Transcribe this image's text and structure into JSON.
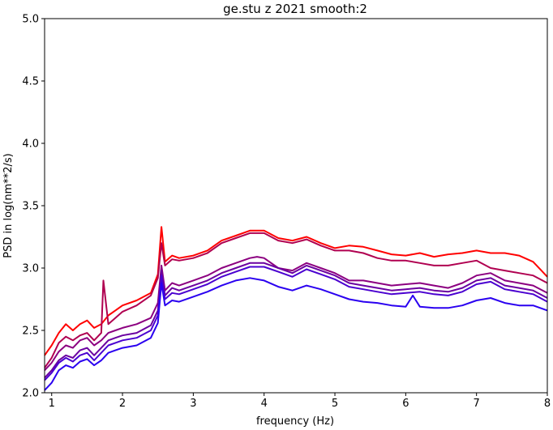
{
  "chart_data": {
    "type": "line",
    "title": "ge.stu z 2021 smooth:2",
    "xlabel": "frequency (Hz)",
    "ylabel": "PSD in log(nm**2/s)",
    "xlim": [
      0.9,
      8.0
    ],
    "ylim": [
      2.0,
      5.0
    ],
    "xticks": [
      "1",
      "2",
      "3",
      "4",
      "5",
      "6",
      "7",
      "8"
    ],
    "yticks": [
      "2.0",
      "2.5",
      "3.0",
      "3.5",
      "4.0",
      "4.5",
      "5.0"
    ],
    "grid": false,
    "legend": "none",
    "series": [
      {
        "color": "#ff0000",
        "x": [
          0.9,
          1.0,
          1.1,
          1.2,
          1.3,
          1.4,
          1.5,
          1.6,
          1.7,
          1.8,
          1.9,
          2.0,
          2.2,
          2.4,
          2.5,
          2.55,
          2.6,
          2.7,
          2.8,
          3.0,
          3.2,
          3.4,
          3.6,
          3.8,
          4.0,
          4.2,
          4.4,
          4.6,
          4.8,
          5.0,
          5.2,
          5.4,
          5.6,
          5.8,
          6.0,
          6.2,
          6.4,
          6.6,
          6.8,
          7.0,
          7.2,
          7.4,
          7.6,
          7.8,
          8.0
        ],
        "y": [
          2.3,
          2.38,
          2.48,
          2.55,
          2.5,
          2.55,
          2.58,
          2.52,
          2.55,
          2.62,
          2.66,
          2.7,
          2.74,
          2.8,
          2.95,
          3.33,
          3.05,
          3.1,
          3.08,
          3.1,
          3.14,
          3.22,
          3.26,
          3.3,
          3.3,
          3.24,
          3.22,
          3.25,
          3.2,
          3.16,
          3.18,
          3.17,
          3.14,
          3.11,
          3.1,
          3.12,
          3.09,
          3.11,
          3.12,
          3.14,
          3.12,
          3.12,
          3.1,
          3.05,
          2.93
        ]
      },
      {
        "color": "#b00050",
        "x": [
          0.9,
          1.0,
          1.1,
          1.2,
          1.3,
          1.4,
          1.5,
          1.6,
          1.7,
          1.73,
          1.8,
          1.9,
          2.0,
          2.2,
          2.4,
          2.5,
          2.55,
          2.6,
          2.7,
          2.8,
          3.0,
          3.2,
          3.4,
          3.6,
          3.8,
          4.0,
          4.2,
          4.4,
          4.6,
          4.8,
          5.0,
          5.2,
          5.4,
          5.6,
          5.8,
          6.0,
          6.2,
          6.4,
          6.6,
          6.8,
          7.0,
          7.2,
          7.4,
          7.6,
          7.8,
          8.0
        ],
        "y": [
          2.2,
          2.28,
          2.4,
          2.45,
          2.42,
          2.46,
          2.48,
          2.42,
          2.48,
          2.9,
          2.55,
          2.6,
          2.65,
          2.7,
          2.78,
          2.92,
          3.2,
          3.02,
          3.07,
          3.06,
          3.08,
          3.12,
          3.2,
          3.24,
          3.28,
          3.28,
          3.22,
          3.2,
          3.23,
          3.18,
          3.14,
          3.14,
          3.12,
          3.08,
          3.06,
          3.06,
          3.04,
          3.02,
          3.02,
          3.04,
          3.06,
          3.0,
          2.98,
          2.96,
          2.94,
          2.88
        ]
      },
      {
        "color": "#8c0080",
        "x": [
          0.9,
          1.0,
          1.1,
          1.2,
          1.3,
          1.4,
          1.5,
          1.6,
          1.7,
          1.8,
          1.9,
          2.0,
          2.2,
          2.4,
          2.5,
          2.55,
          2.6,
          2.7,
          2.8,
          3.0,
          3.2,
          3.4,
          3.6,
          3.8,
          3.9,
          4.0,
          4.2,
          4.4,
          4.6,
          4.8,
          5.0,
          5.2,
          5.4,
          5.6,
          5.8,
          6.0,
          6.2,
          6.4,
          6.6,
          6.8,
          7.0,
          7.2,
          7.4,
          7.6,
          7.8,
          8.0
        ],
        "y": [
          2.18,
          2.24,
          2.33,
          2.38,
          2.36,
          2.42,
          2.44,
          2.38,
          2.42,
          2.48,
          2.5,
          2.52,
          2.55,
          2.6,
          2.72,
          3.02,
          2.82,
          2.88,
          2.86,
          2.9,
          2.94,
          3.0,
          3.04,
          3.08,
          3.09,
          3.08,
          3.0,
          2.98,
          3.04,
          3.0,
          2.96,
          2.9,
          2.9,
          2.88,
          2.86,
          2.87,
          2.88,
          2.86,
          2.84,
          2.88,
          2.94,
          2.96,
          2.9,
          2.88,
          2.86,
          2.8
        ]
      },
      {
        "color": "#6a00a0",
        "x": [
          0.9,
          1.0,
          1.1,
          1.2,
          1.3,
          1.4,
          1.5,
          1.6,
          1.7,
          1.8,
          1.9,
          2.0,
          2.2,
          2.4,
          2.5,
          2.55,
          2.6,
          2.7,
          2.8,
          3.0,
          3.2,
          3.4,
          3.6,
          3.8,
          4.0,
          4.2,
          4.4,
          4.6,
          4.8,
          5.0,
          5.2,
          5.4,
          5.6,
          5.8,
          6.0,
          6.2,
          6.4,
          6.6,
          6.8,
          7.0,
          7.2,
          7.4,
          7.6,
          7.8,
          8.0
        ],
        "y": [
          2.12,
          2.18,
          2.26,
          2.3,
          2.28,
          2.34,
          2.36,
          2.3,
          2.36,
          2.42,
          2.44,
          2.46,
          2.48,
          2.54,
          2.66,
          2.98,
          2.78,
          2.84,
          2.82,
          2.86,
          2.9,
          2.96,
          3.0,
          3.04,
          3.04,
          3.0,
          2.96,
          3.02,
          2.98,
          2.94,
          2.88,
          2.86,
          2.84,
          2.82,
          2.83,
          2.84,
          2.82,
          2.81,
          2.84,
          2.9,
          2.92,
          2.86,
          2.84,
          2.82,
          2.76
        ]
      },
      {
        "color": "#4a00d0",
        "x": [
          0.9,
          1.0,
          1.1,
          1.2,
          1.3,
          1.4,
          1.5,
          1.6,
          1.7,
          1.8,
          1.9,
          2.0,
          2.2,
          2.4,
          2.5,
          2.55,
          2.6,
          2.7,
          2.8,
          3.0,
          3.2,
          3.4,
          3.6,
          3.8,
          4.0,
          4.2,
          4.4,
          4.6,
          4.8,
          5.0,
          5.2,
          5.4,
          5.6,
          5.8,
          6.0,
          6.2,
          6.4,
          6.6,
          6.8,
          7.0,
          7.2,
          7.4,
          7.6,
          7.8,
          8.0
        ],
        "y": [
          2.1,
          2.16,
          2.24,
          2.28,
          2.25,
          2.3,
          2.32,
          2.26,
          2.32,
          2.38,
          2.4,
          2.42,
          2.44,
          2.5,
          2.62,
          2.94,
          2.75,
          2.8,
          2.79,
          2.83,
          2.87,
          2.93,
          2.97,
          3.01,
          3.01,
          2.97,
          2.93,
          2.99,
          2.95,
          2.91,
          2.85,
          2.83,
          2.81,
          2.79,
          2.8,
          2.81,
          2.79,
          2.78,
          2.81,
          2.87,
          2.89,
          2.83,
          2.81,
          2.79,
          2.73
        ]
      },
      {
        "color": "#2a00f0",
        "x": [
          0.9,
          1.0,
          1.1,
          1.2,
          1.3,
          1.4,
          1.5,
          1.6,
          1.7,
          1.8,
          1.9,
          2.0,
          2.2,
          2.4,
          2.5,
          2.55,
          2.6,
          2.7,
          2.8,
          3.0,
          3.2,
          3.4,
          3.6,
          3.8,
          4.0,
          4.2,
          4.4,
          4.6,
          4.8,
          5.0,
          5.2,
          5.4,
          5.6,
          5.8,
          6.0,
          6.1,
          6.2,
          6.4,
          6.6,
          6.8,
          7.0,
          7.2,
          7.4,
          7.6,
          7.8,
          8.0
        ],
        "y": [
          2.02,
          2.08,
          2.18,
          2.22,
          2.2,
          2.25,
          2.27,
          2.22,
          2.26,
          2.32,
          2.34,
          2.36,
          2.38,
          2.44,
          2.56,
          2.88,
          2.7,
          2.74,
          2.73,
          2.77,
          2.81,
          2.86,
          2.9,
          2.92,
          2.9,
          2.85,
          2.82,
          2.86,
          2.83,
          2.79,
          2.75,
          2.73,
          2.72,
          2.7,
          2.69,
          2.78,
          2.69,
          2.68,
          2.68,
          2.7,
          2.74,
          2.76,
          2.72,
          2.7,
          2.7,
          2.66
        ]
      }
    ]
  }
}
